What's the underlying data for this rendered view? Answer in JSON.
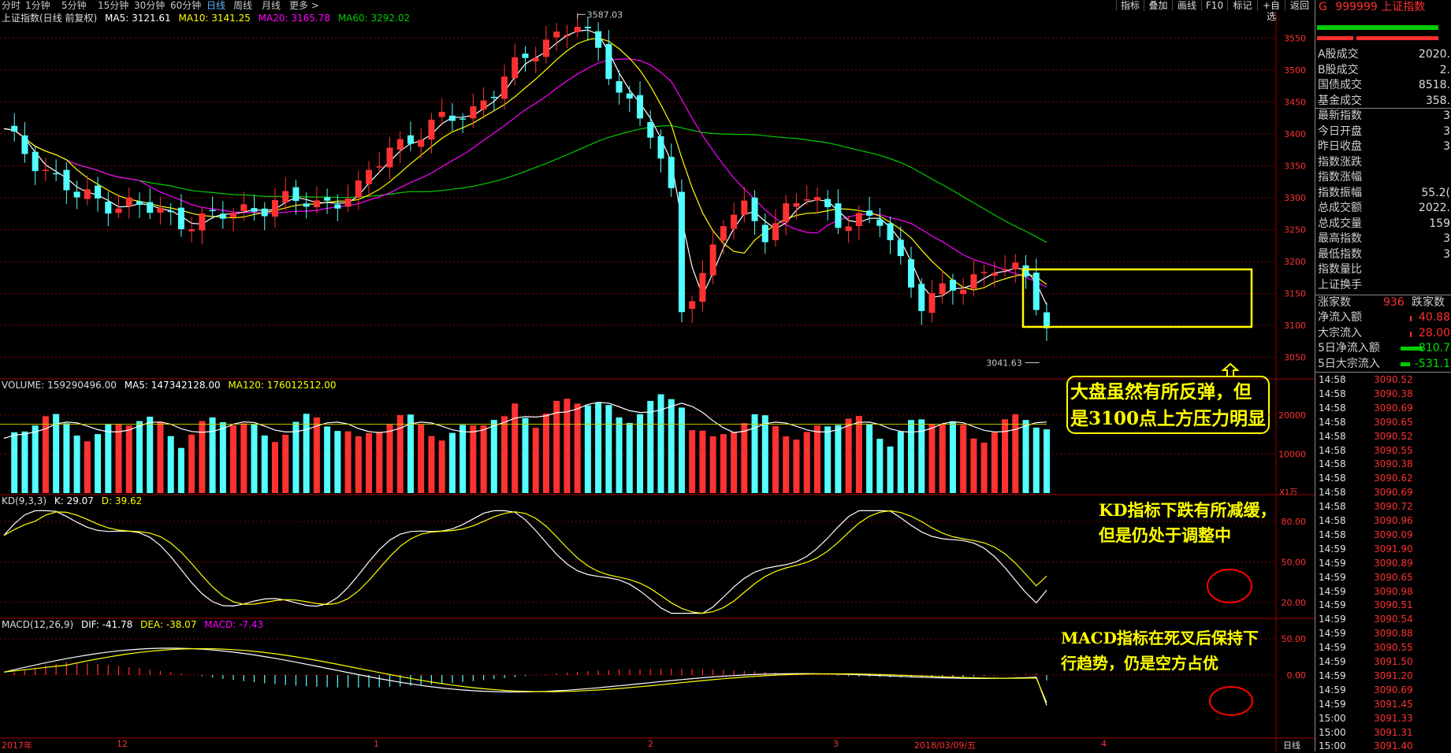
{
  "toolbar": {
    "periods": [
      "分时",
      "1分钟",
      "5分钟",
      "15分钟",
      "30分钟",
      "60分钟",
      "日线",
      "周线",
      "月线",
      "更多 >"
    ],
    "active_index": 6,
    "right_buttons": [
      "指标",
      "叠加",
      "画线",
      "F10",
      "标记",
      "+自选",
      "返回"
    ]
  },
  "main_panel": {
    "title": "上证指数(日线 前复权)",
    "ma5": "MA5: 3121.61",
    "ma10": "MA10: 3141.25",
    "ma20": "MA20: 3165.78",
    "ma60": "MA60: 3292.02",
    "high_label": "3587.03",
    "low_label": "3041.63",
    "price_ticks": [
      "3550",
      "3500",
      "3450",
      "3400",
      "3350",
      "3300",
      "3250",
      "3200",
      "3150",
      "3100",
      "3050"
    ]
  },
  "volume_panel": {
    "title": "VOLUME: 159290496.00",
    "ma5": "MA5: 147342128.00",
    "ma120": "MA120: 176012512.00",
    "ticks": [
      "20000",
      "10000"
    ],
    "unit": "X1万"
  },
  "kd_panel": {
    "title": "KD(9,3,3)",
    "k": "K: 29.07",
    "d": "D: 39.62",
    "ticks": [
      "80.00",
      "50.00",
      "20.00"
    ]
  },
  "macd_panel": {
    "title": "MACD(12,26,9)",
    "dif": "DIF: -41.78",
    "dea": "DEA: -38.07",
    "macd": "MACD: -7.43",
    "ticks": [
      "50.00",
      "0.00"
    ]
  },
  "date_axis": {
    "labels": [
      "2017年",
      "12",
      "1",
      "2",
      "3",
      "2018/03/09/五",
      "4"
    ],
    "period_label": "日线"
  },
  "annotations": {
    "main": [
      "大盘虽然有所反弹，但",
      "是3100点上方压力明显"
    ],
    "kd": [
      "KD指标下跌有所减缓，",
      "但是仍处于调整中"
    ],
    "macd": [
      "MACD指标在死叉后保持下",
      "行趋势，仍是空方占优"
    ]
  },
  "sidebar": {
    "code": "G",
    "title": "999999 上证指数",
    "stats": [
      {
        "label": "A股成交",
        "value": "2020."
      },
      {
        "label": "B股成交",
        "value": "2."
      },
      {
        "label": "国债成交",
        "value": "8518."
      },
      {
        "label": "基金成交",
        "value": "358."
      },
      {
        "label": "最新指数",
        "value": "3"
      },
      {
        "label": "今日开盘",
        "value": "3"
      },
      {
        "label": "昨日收盘",
        "value": "3"
      },
      {
        "label": "指数涨跌",
        "value": ""
      },
      {
        "label": "指数涨幅",
        "value": ""
      },
      {
        "label": "指数振幅",
        "value": "55.2("
      },
      {
        "label": "总成交额",
        "value": "2022."
      },
      {
        "label": "总成交量",
        "value": "159"
      },
      {
        "label": "最高指数",
        "value": "3"
      },
      {
        "label": "最低指数",
        "value": "3"
      },
      {
        "label": "指数量比",
        "value": ""
      },
      {
        "label": "上证换手",
        "value": ""
      }
    ],
    "rise_label": "涨家数",
    "rise_value": "936",
    "fall_label": "跌家数",
    "flows": [
      {
        "label": "净流入额",
        "value": "40.88"
      },
      {
        "label": "大宗流入",
        "value": "28.00"
      },
      {
        "label": "5日净流入额",
        "value": "-810.7"
      },
      {
        "label": "5日大宗流入",
        "value": "-531.1"
      }
    ],
    "ticks": [
      {
        "t": "14:58",
        "v": "3090.52"
      },
      {
        "t": "14:58",
        "v": "3090.38"
      },
      {
        "t": "14:58",
        "v": "3090.69"
      },
      {
        "t": "14:58",
        "v": "3090.65"
      },
      {
        "t": "14:58",
        "v": "3090.52"
      },
      {
        "t": "14:58",
        "v": "3090.55"
      },
      {
        "t": "14:58",
        "v": "3090.38"
      },
      {
        "t": "14:58",
        "v": "3090.62"
      },
      {
        "t": "14:58",
        "v": "3090.69"
      },
      {
        "t": "14:58",
        "v": "3090.72"
      },
      {
        "t": "14:58",
        "v": "3090.96"
      },
      {
        "t": "14:58",
        "v": "3090.09"
      },
      {
        "t": "14:59",
        "v": "3091.90"
      },
      {
        "t": "14:59",
        "v": "3090.89"
      },
      {
        "t": "14:59",
        "v": "3090.65"
      },
      {
        "t": "14:59",
        "v": "3090.98"
      },
      {
        "t": "14:59",
        "v": "3090.51"
      },
      {
        "t": "14:59",
        "v": "3090.54"
      },
      {
        "t": "14:59",
        "v": "3090.88"
      },
      {
        "t": "14:59",
        "v": "3090.55"
      },
      {
        "t": "14:59",
        "v": "3091.50"
      },
      {
        "t": "14:59",
        "v": "3091.20"
      },
      {
        "t": "14:59",
        "v": "3090.69"
      },
      {
        "t": "14:59",
        "v": "3091.45"
      },
      {
        "t": "15:00",
        "v": "3091.33"
      },
      {
        "t": "15:00",
        "v": "3091.31"
      },
      {
        "t": "15:00",
        "v": "3091.40"
      }
    ]
  },
  "colors": {
    "up": "#ff3232",
    "down": "#54ffff",
    "ma5": "#ffffff",
    "ma10": "#ffff00",
    "ma20": "#ff00ff",
    "ma60": "#00cc00",
    "grid": "#8b0000",
    "annotation": "#ffff00"
  },
  "chart_data": {
    "type": "candlestick",
    "title": "上证指数(日线 前复权)",
    "price_range": [
      3020,
      3580
    ],
    "recent_low": 3041.63,
    "high": 3587.03,
    "last_ma": {
      "ma5": 3121.61,
      "ma10": 3141.25,
      "ma20": 3165.78,
      "ma60": 3292.02
    },
    "volume_ma": {
      "volume": 159290496.0,
      "ma5": 147342128.0,
      "ma120": 176012512.0
    },
    "kd": {
      "k": 29.07,
      "d": 39.62
    },
    "macd": {
      "dif": -41.78,
      "dea": -38.07,
      "macd": -7.43
    }
  }
}
